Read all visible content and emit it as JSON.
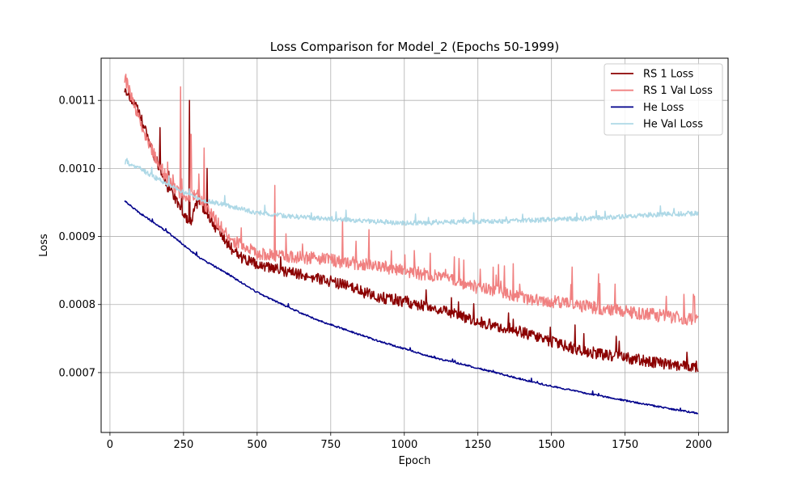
{
  "chart_data": {
    "type": "line",
    "title": "Loss Comparison for Model_2 (Epochs 50-1999)",
    "xlabel": "Epoch",
    "ylabel": "Loss",
    "xlim": [
      -30,
      2100
    ],
    "ylim": [
      0.000612,
      0.001162
    ],
    "x_ticks": [
      0,
      250,
      500,
      750,
      1000,
      1250,
      1500,
      1750,
      2000
    ],
    "x_tick_labels": [
      "0",
      "250",
      "500",
      "750",
      "1000",
      "1250",
      "1500",
      "1750",
      "2000"
    ],
    "y_ticks": [
      0.0007,
      0.0008,
      0.0009,
      0.001,
      0.0011
    ],
    "y_tick_labels": [
      "0.0007",
      "0.0008",
      "0.0009",
      "0.0010",
      "0.0011"
    ],
    "grid": true,
    "legend_position": "top-right",
    "x_start": 50,
    "x_end": 1999,
    "series": [
      {
        "name": "RS 1 Loss",
        "color": "#8b0000",
        "anchors": [
          [
            50,
            0.00112
          ],
          [
            100,
            0.00108
          ],
          [
            150,
            0.00102
          ],
          [
            200,
            0.00097
          ],
          [
            250,
            0.000935
          ],
          [
            275,
            0.00092
          ],
          [
            300,
            0.000955
          ],
          [
            350,
            0.00092
          ],
          [
            400,
            0.000888
          ],
          [
            450,
            0.000868
          ],
          [
            500,
            0.000858
          ],
          [
            600,
            0.000848
          ],
          [
            700,
            0.00084
          ],
          [
            800,
            0.000828
          ],
          [
            900,
            0.000812
          ],
          [
            1000,
            0.000805
          ],
          [
            1100,
            0.000795
          ],
          [
            1250,
            0.000775
          ],
          [
            1400,
            0.00076
          ],
          [
            1500,
            0.000745
          ],
          [
            1600,
            0.000732
          ],
          [
            1750,
            0.000722
          ],
          [
            1900,
            0.000712
          ],
          [
            1999,
            0.000708
          ]
        ],
        "noise": 8.5e-06,
        "spikes": [
          [
            170,
            0.00106
          ],
          [
            270,
            0.0011
          ],
          [
            330,
            0.001
          ],
          [
            580,
            0.00087
          ],
          [
            1160,
            0.00081
          ],
          [
            1580,
            0.00077
          ],
          [
            1960,
            0.00073
          ]
        ]
      },
      {
        "name": "RS 1 Val Loss",
        "color": "#f08080",
        "anchors": [
          [
            50,
            0.001135
          ],
          [
            100,
            0.00107
          ],
          [
            150,
            0.00102
          ],
          [
            200,
            0.00098
          ],
          [
            250,
            0.00096
          ],
          [
            300,
            0.00096
          ],
          [
            350,
            0.00093
          ],
          [
            400,
            0.0009
          ],
          [
            450,
            0.000885
          ],
          [
            500,
            0.000875
          ],
          [
            600,
            0.00087
          ],
          [
            700,
            0.000868
          ],
          [
            800,
            0.000862
          ],
          [
            900,
            0.000858
          ],
          [
            1000,
            0.00085
          ],
          [
            1100,
            0.000842
          ],
          [
            1250,
            0.000825
          ],
          [
            1400,
            0.00081
          ],
          [
            1500,
            0.000805
          ],
          [
            1600,
            0.000798
          ],
          [
            1750,
            0.00079
          ],
          [
            1900,
            0.000782
          ],
          [
            1999,
            0.000778
          ]
        ],
        "noise": 9.5e-06,
        "spikes": [
          [
            240,
            0.00112
          ],
          [
            275,
            0.00105
          ],
          [
            320,
            0.00103
          ],
          [
            560,
            0.000975
          ],
          [
            790,
            0.000925
          ],
          [
            880,
            0.00091
          ],
          [
            1170,
            0.00087
          ],
          [
            1370,
            0.00086
          ],
          [
            1570,
            0.000855
          ],
          [
            1660,
            0.000845
          ],
          [
            1950,
            0.000815
          ],
          [
            1985,
            0.000812
          ]
        ]
      },
      {
        "name": "He Loss",
        "color": "#00008b",
        "anchors": [
          [
            50,
            0.000952
          ],
          [
            100,
            0.000935
          ],
          [
            200,
            0.000905
          ],
          [
            300,
            0.00087
          ],
          [
            400,
            0.000845
          ],
          [
            500,
            0.000818
          ],
          [
            600,
            0.000797
          ],
          [
            700,
            0.000778
          ],
          [
            800,
            0.000763
          ],
          [
            900,
            0.000748
          ],
          [
            1000,
            0.000735
          ],
          [
            1100,
            0.000722
          ],
          [
            1200,
            0.000712
          ],
          [
            1300,
            0.000701
          ],
          [
            1400,
            0.00069
          ],
          [
            1500,
            0.00068
          ],
          [
            1600,
            0.000671
          ],
          [
            1700,
            0.000663
          ],
          [
            1800,
            0.000655
          ],
          [
            1900,
            0.000647
          ],
          [
            1999,
            0.00064
          ]
        ],
        "noise": 1.2e-06,
        "spikes": []
      },
      {
        "name": "He Val Loss",
        "color": "#add8e6",
        "anchors": [
          [
            50,
            0.00101
          ],
          [
            100,
            0.001
          ],
          [
            200,
            0.000975
          ],
          [
            300,
            0.000955
          ],
          [
            400,
            0.000945
          ],
          [
            500,
            0.000935
          ],
          [
            600,
            0.00093
          ],
          [
            700,
            0.000927
          ],
          [
            800,
            0.000925
          ],
          [
            900,
            0.000922
          ],
          [
            1000,
            0.00092
          ],
          [
            1100,
            0.00092
          ],
          [
            1200,
            0.000922
          ],
          [
            1300,
            0.000922
          ],
          [
            1400,
            0.000923
          ],
          [
            1500,
            0.000925
          ],
          [
            1600,
            0.000926
          ],
          [
            1700,
            0.000928
          ],
          [
            1800,
            0.000931
          ],
          [
            1900,
            0.000933
          ],
          [
            1999,
            0.000934
          ]
        ],
        "noise": 3.5e-06,
        "spikes": [
          [
            270,
            0.00097
          ],
          [
            1870,
            0.000945
          ]
        ]
      }
    ]
  }
}
